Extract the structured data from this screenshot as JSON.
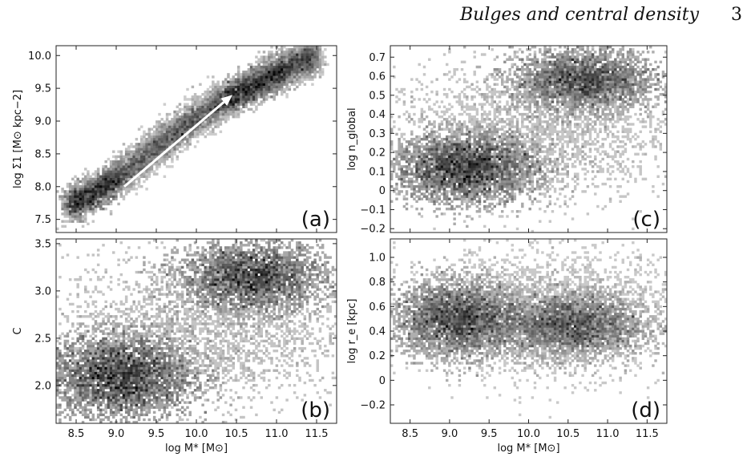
{
  "header": {
    "running_title": "Bulges and central density",
    "page_number": "3"
  },
  "chart_data": [
    {
      "type": "heatmap",
      "panel_label": "(a)",
      "xlabel": "log M* [M⊙]",
      "ylabel": "log Σ1 [M⊙ kpc−2]",
      "xlim": [
        8.25,
        11.75
      ],
      "ylim": [
        7.3,
        10.15
      ],
      "xticks": [
        8.5,
        9.0,
        9.5,
        10.0,
        10.5,
        11.0,
        11.5
      ],
      "yticks": [
        7.5,
        8.0,
        8.5,
        9.0,
        9.5,
        10.0
      ],
      "yticklabels": [
        "7.5",
        "8.0",
        "8.5",
        "9.0",
        "9.5",
        "10.0"
      ],
      "annotation": "arrow from (9.1, 8.0) to (10.45, 9.4)",
      "density_ridge": [
        [
          8.4,
          7.7
        ],
        [
          8.8,
          7.95
        ],
        [
          9.2,
          8.3
        ],
        [
          9.6,
          8.7
        ],
        [
          10.0,
          9.05
        ],
        [
          10.4,
          9.35
        ],
        [
          10.8,
          9.6
        ],
        [
          11.2,
          9.85
        ],
        [
          11.5,
          10.0
        ]
      ]
    },
    {
      "type": "heatmap",
      "panel_label": "(b)",
      "xlabel": "log M* [M⊙]",
      "ylabel": "C",
      "xlim": [
        8.25,
        11.75
      ],
      "ylim": [
        1.6,
        3.55
      ],
      "xticks": [
        8.5,
        9.0,
        9.5,
        10.0,
        10.5,
        11.0,
        11.5
      ],
      "yticks": [
        2.0,
        2.5,
        3.0,
        3.5
      ],
      "yticklabels": [
        "2.0",
        "2.5",
        "3.0",
        "3.5"
      ],
      "density_peaks": [
        [
          9.0,
          2.1
        ],
        [
          10.8,
          3.25
        ]
      ]
    },
    {
      "type": "heatmap",
      "panel_label": "(c)",
      "xlabel": "log M* [M⊙]",
      "ylabel": "log n_global",
      "xlim": [
        8.25,
        11.75
      ],
      "ylim": [
        -0.22,
        0.76
      ],
      "xticks": [
        8.5,
        9.0,
        9.5,
        10.0,
        10.5,
        11.0,
        11.5
      ],
      "yticks": [
        -0.2,
        -0.1,
        0,
        0.1,
        0.2,
        0.3,
        0.4,
        0.5,
        0.6,
        0.7
      ],
      "yticklabels": [
        "−0.2",
        "−0.1",
        "0",
        "0.1",
        "0.2",
        "0.3",
        "0.4",
        "0.5",
        "0.6",
        "0.7"
      ],
      "density_peaks": [
        [
          9.3,
          0.12
        ],
        [
          10.7,
          0.6
        ]
      ]
    },
    {
      "type": "heatmap",
      "panel_label": "(d)",
      "xlabel": "log M* [M⊙]",
      "ylabel": "log r_e [kpc]",
      "xlim": [
        8.25,
        11.75
      ],
      "ylim": [
        -0.35,
        1.15
      ],
      "xticks": [
        8.5,
        9.0,
        9.5,
        10.0,
        10.5,
        11.0,
        11.5
      ],
      "yticks": [
        -0.2,
        0,
        0.2,
        0.4,
        0.6,
        0.8,
        1.0
      ],
      "yticklabels": [
        "−0.2",
        "0",
        "0.2",
        "0.4",
        "0.6",
        "0.8",
        "1.0"
      ],
      "density_peaks": [
        [
          9.1,
          0.5
        ],
        [
          10.6,
          0.45
        ]
      ]
    }
  ]
}
